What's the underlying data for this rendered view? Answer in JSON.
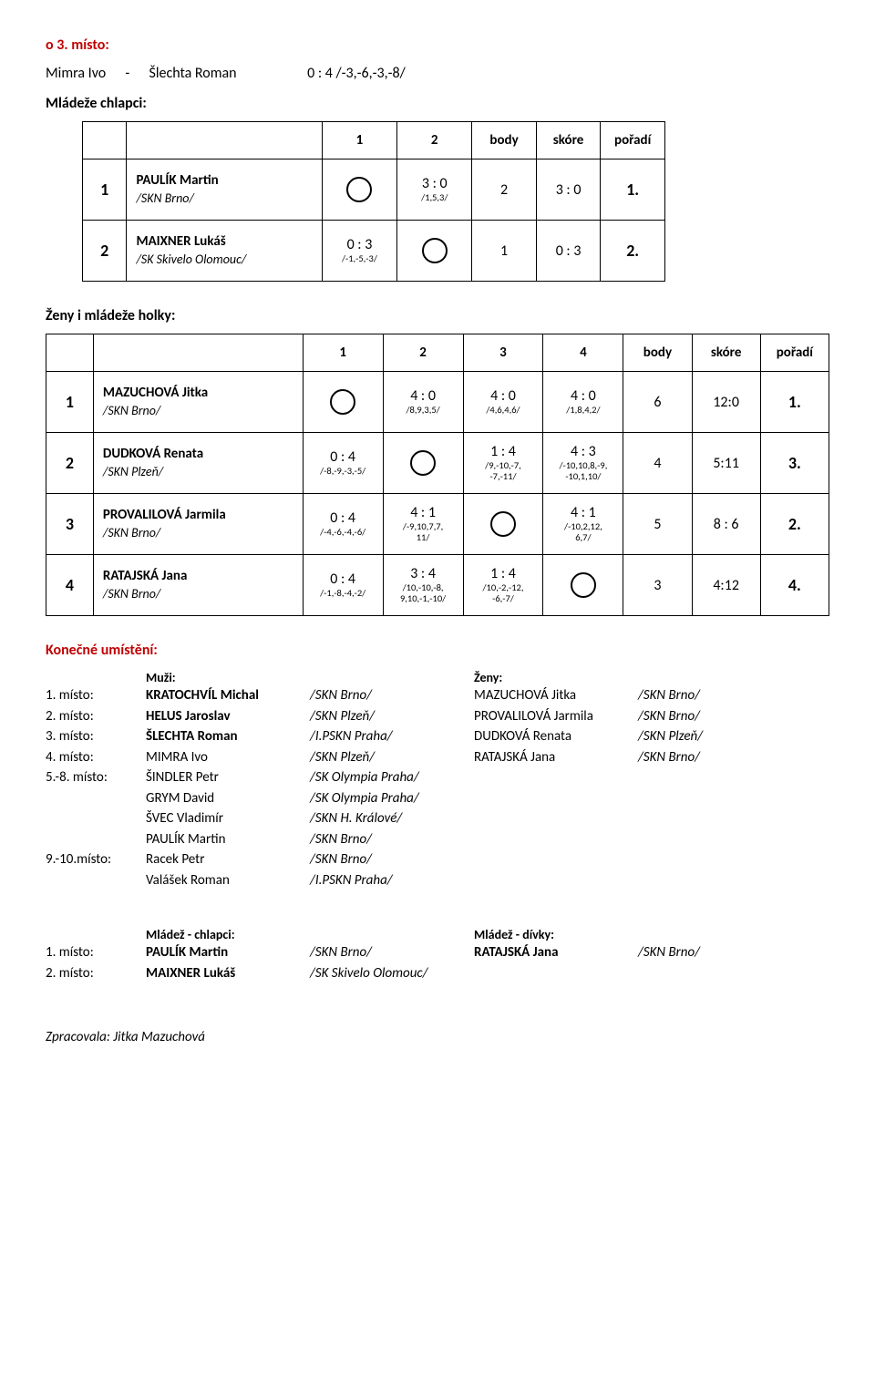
{
  "section1": {
    "title": "o 3. místo:"
  },
  "match3": {
    "p1": "Mimra Ivo",
    "sep": "-",
    "p2": "Šlechta Roman",
    "score": "0 : 4 /-3,-6,-3,-8/"
  },
  "section2": {
    "title": "Mládeže chlapci:"
  },
  "bracket2": {
    "headers": [
      "",
      "",
      "1",
      "2",
      "body",
      "skóre",
      "pořadí"
    ],
    "rows": [
      {
        "idx": "1",
        "name": "PAULÍK Martin",
        "club": "/SKN Brno/",
        "cells": [
          {
            "circle": true
          },
          {
            "score": "3 : 0",
            "sub": "/1,5,3/"
          }
        ],
        "body": "2",
        "skore": "3 : 0",
        "poradi": "1."
      },
      {
        "idx": "2",
        "name": "MAIXNER Lukáš",
        "club": "/SK Skivelo Olomouc/",
        "cells": [
          {
            "score": "0 : 3",
            "sub": "/-1,-5,-3/"
          },
          {
            "circle": true
          }
        ],
        "body": "1",
        "skore": "0 : 3",
        "poradi": "2."
      }
    ]
  },
  "section3": {
    "title": "Ženy i mládeže holky:"
  },
  "bracket4": {
    "headers": [
      "",
      "",
      "1",
      "2",
      "3",
      "4",
      "body",
      "skóre",
      "pořadí"
    ],
    "rows": [
      {
        "idx": "1",
        "name": "MAZUCHOVÁ Jitka",
        "club": "/SKN Brno/",
        "cells": [
          {
            "circle": true
          },
          {
            "score": "4 : 0",
            "sub": "/8,9,3,5/"
          },
          {
            "score": "4 : 0",
            "sub": "/4,6,4,6/"
          },
          {
            "score": "4 : 0",
            "sub": "/1,8,4,2/"
          }
        ],
        "body": "6",
        "skore": "12:0",
        "poradi": "1."
      },
      {
        "idx": "2",
        "name": "DUDKOVÁ Renata",
        "club": "/SKN Plzeň/",
        "cells": [
          {
            "score": "0 : 4",
            "sub": "/-8,-9,-3,-5/"
          },
          {
            "circle": true
          },
          {
            "score": "1 : 4",
            "sub": "/9,-10,-7,\n-7,-11/"
          },
          {
            "score": "4 : 3",
            "sub": "/-10,10,8,-9,\n-10,1,10/"
          }
        ],
        "body": "4",
        "skore": "5:11",
        "poradi": "3."
      },
      {
        "idx": "3",
        "name": "PROVALILOVÁ Jarmila",
        "club": "/SKN Brno/",
        "cells": [
          {
            "score": "0 : 4",
            "sub": "/-4,-6,-4,-6/"
          },
          {
            "score": "4 : 1",
            "sub": "/-9,10,7,7,\n11/"
          },
          {
            "circle": true
          },
          {
            "score": "4 : 1",
            "sub": "/-10,2,12,\n6,7/"
          }
        ],
        "body": "5",
        "skore": "8 : 6",
        "poradi": "2."
      },
      {
        "idx": "4",
        "name": "RATAJSKÁ Jana",
        "club": "/SKN Brno/",
        "cells": [
          {
            "score": "0 : 4",
            "sub": "/-1,-8,-4,-2/"
          },
          {
            "score": "3 : 4",
            "sub": "/10,-10,-8,\n9,10,-1,-10/"
          },
          {
            "score": "1 : 4",
            "sub": "/10,-2,-12,\n-6,-7/"
          },
          {
            "circle": true
          }
        ],
        "body": "3",
        "skore": "4:12",
        "poradi": "4."
      }
    ]
  },
  "final": {
    "title": "Konečné umístění:",
    "headers": {
      "muzi": "Muži:",
      "zeny": "Ženy:"
    },
    "rows": [
      {
        "place": "1. místo:",
        "n1": "KRATOCHVÍL Michal",
        "c1": "/SKN Brno/",
        "n2": "MAZUCHOVÁ Jitka",
        "c2": "/SKN Brno/"
      },
      {
        "place": "2. místo:",
        "n1": "HELUS Jaroslav",
        "c1": "/SKN Plzeň/",
        "n2": "PROVALILOVÁ Jarmila",
        "c2": "/SKN Brno/"
      },
      {
        "place": "3. místo:",
        "n1": "ŠLECHTA Roman",
        "c1": "/I.PSKN Praha/",
        "n2": "DUDKOVÁ Renata",
        "c2": "/SKN Plzeň/"
      },
      {
        "place": "4. místo:",
        "n1": "MIMRA Ivo",
        "c1": "/SKN Plzeň/",
        "n2": "RATAJSKÁ Jana",
        "c2": "/SKN Brno/",
        "nobold": true
      },
      {
        "place": "5.-8. místo:",
        "n1": "ŠINDLER Petr",
        "c1": "/SK Olympia Praha/",
        "nobold": true
      },
      {
        "place": "",
        "n1": "GRYM David",
        "c1": "/SK Olympia Praha/",
        "nobold": true
      },
      {
        "place": "",
        "n1": "ŠVEC Vladimír",
        "c1": "/SKN H. Králové/",
        "nobold": true
      },
      {
        "place": "",
        "n1": "PAULÍK Martin",
        "c1": "/SKN Brno/",
        "nobold": true
      },
      {
        "place": "9.-10.místo:",
        "n1": "Racek Petr",
        "c1": "/SKN Brno/",
        "nobold": true
      },
      {
        "place": "",
        "n1": "Valášek Roman",
        "c1": "/I.PSKN Praha/",
        "nobold": true
      }
    ]
  },
  "youth": {
    "headers": {
      "ch": "Mládež - chlapci:",
      "di": "Mládež - dívky:"
    },
    "rows": [
      {
        "place": "1. místo:",
        "n1": "PAULÍK Martin",
        "c1": "/SKN Brno/",
        "n2": "RATAJSKÁ Jana",
        "c2": "/SKN Brno/"
      },
      {
        "place": "2. místo:",
        "n1": "MAIXNER Lukáš",
        "c1": "/SK Skivelo Olomouc/"
      }
    ]
  },
  "footer": "Zpracovala: Jitka Mazuchová"
}
